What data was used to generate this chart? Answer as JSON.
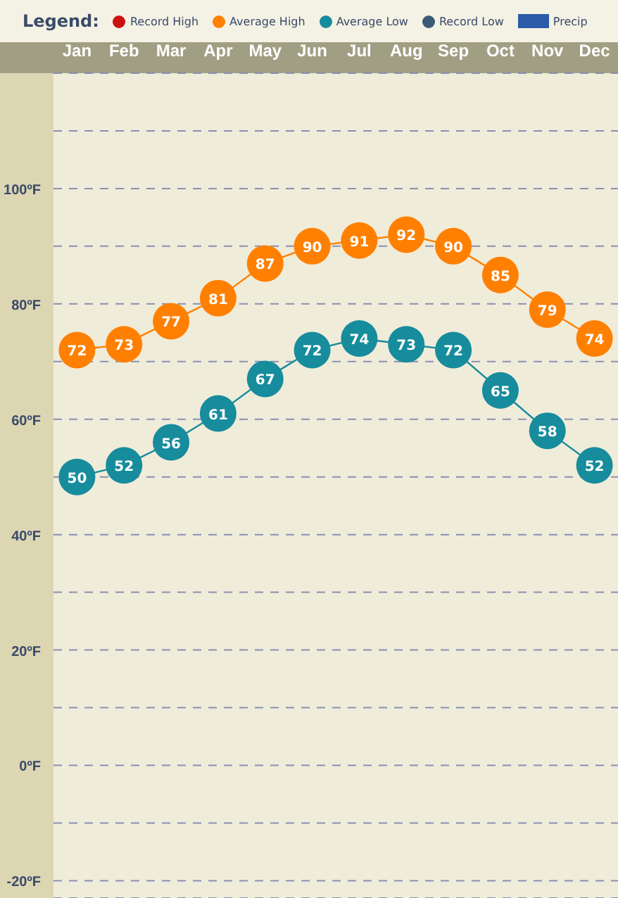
{
  "chart_data": {
    "type": "line",
    "legend_title": "Legend:",
    "legend": "top",
    "categories": [
      "Jan",
      "Feb",
      "Mar",
      "Apr",
      "May",
      "Jun",
      "Jul",
      "Aug",
      "Sep",
      "Oct",
      "Nov",
      "Dec"
    ],
    "series": [
      {
        "name": "Record High",
        "color": "#cc1111",
        "values": [
          null,
          null,
          null,
          null,
          null,
          null,
          null,
          null,
          null,
          null,
          null,
          null
        ]
      },
      {
        "name": "Average High",
        "color": "#ff8000",
        "values": [
          72,
          73,
          77,
          81,
          87,
          90,
          91,
          92,
          90,
          85,
          79,
          74
        ]
      },
      {
        "name": "Average Low",
        "color": "#168c9c",
        "values": [
          50,
          52,
          56,
          61,
          67,
          72,
          74,
          73,
          72,
          65,
          58,
          52
        ]
      },
      {
        "name": "Record Low",
        "color": "#3a5a78",
        "values": [
          null,
          null,
          null,
          null,
          null,
          null,
          null,
          null,
          null,
          null,
          null,
          null
        ]
      },
      {
        "name": "Precip",
        "type": "bar",
        "color": "#2a5aa8",
        "values": [
          null,
          null,
          null,
          null,
          null,
          null,
          null,
          null,
          null,
          null,
          null,
          null
        ]
      }
    ],
    "data_labels": true,
    "marker": "circle",
    "grid": "y",
    "ylim": [
      -23,
      120
    ],
    "yticks": [
      {
        "value": -20,
        "label": "-20ºF"
      },
      {
        "value": -10,
        "label": null
      },
      {
        "value": 0,
        "label": "0ºF"
      },
      {
        "value": 10,
        "label": null
      },
      {
        "value": 20,
        "label": "20ºF"
      },
      {
        "value": 30,
        "label": null
      },
      {
        "value": 40,
        "label": "40ºF"
      },
      {
        "value": 50,
        "label": null
      },
      {
        "value": 60,
        "label": "60ºF"
      },
      {
        "value": 70,
        "label": null
      },
      {
        "value": 80,
        "label": "80ºF"
      },
      {
        "value": 90,
        "label": null
      },
      {
        "value": 100,
        "label": "100ºF"
      },
      {
        "value": 110,
        "label": null
      },
      {
        "value": 120,
        "label": null
      }
    ]
  }
}
